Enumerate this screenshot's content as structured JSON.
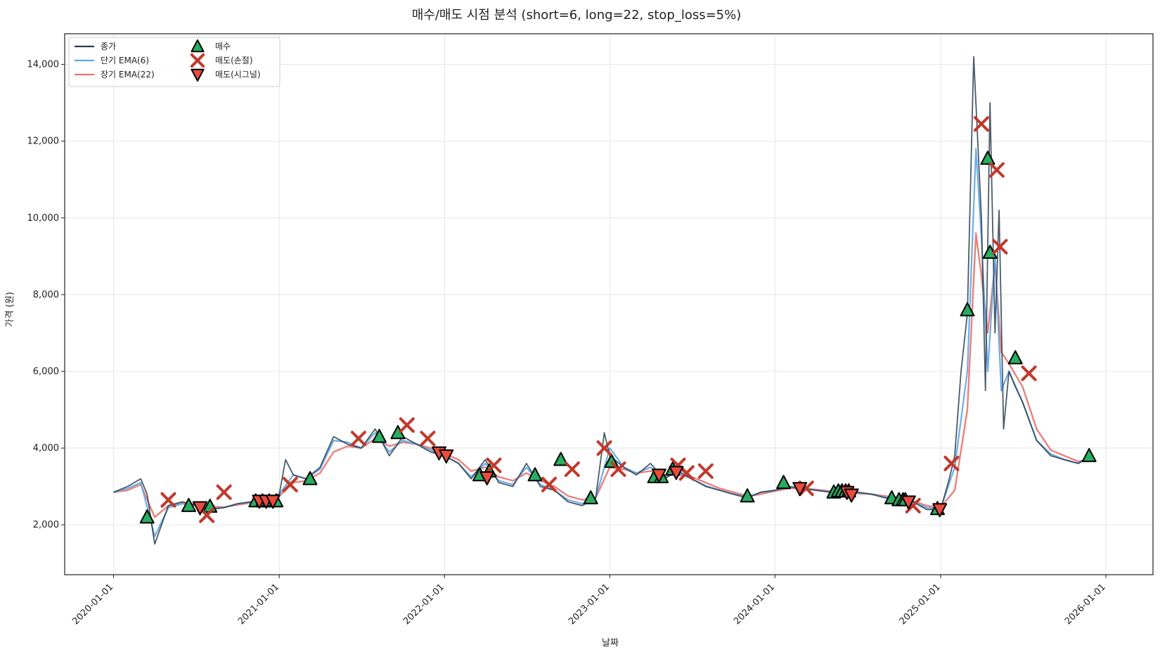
{
  "chart_data": {
    "type": "line",
    "title": "매수/매도 시점 분석 (short=6, long=22, stop_loss=5%)",
    "xlabel": "날짜",
    "ylabel": "가격 (원)",
    "xlim": [
      "2019-09-15",
      "2026-04-15"
    ],
    "ylim": [
      700,
      14800
    ],
    "grid": true,
    "legend_position": "top-left",
    "x_ticks": [
      "2020-01-01",
      "2021-01-01",
      "2022-01-01",
      "2023-01-01",
      "2024-01-01",
      "2025-01-01",
      "2026-01-01"
    ],
    "y_ticks": [
      2000,
      4000,
      6000,
      8000,
      10000,
      12000,
      14000
    ],
    "y_tick_labels": [
      "2,000",
      "4,000",
      "6,000",
      "8,000",
      "10,000",
      "12,000",
      "14,000"
    ],
    "series": [
      {
        "name": "종가",
        "color": "#2c3e50",
        "x": [
          "2020-01-01",
          "2020-02-01",
          "2020-03-01",
          "2020-03-15",
          "2020-04-01",
          "2020-05-01",
          "2020-06-01",
          "2020-07-01",
          "2020-08-01",
          "2020-09-01",
          "2020-10-01",
          "2020-11-01",
          "2020-12-01",
          "2021-01-01",
          "2021-01-15",
          "2021-02-01",
          "2021-03-01",
          "2021-04-01",
          "2021-05-01",
          "2021-06-01",
          "2021-07-01",
          "2021-08-01",
          "2021-09-01",
          "2021-10-01",
          "2021-11-01",
          "2021-12-01",
          "2022-01-01",
          "2022-02-01",
          "2022-03-01",
          "2022-04-01",
          "2022-05-01",
          "2022-06-01",
          "2022-07-01",
          "2022-08-01",
          "2022-09-01",
          "2022-10-01",
          "2022-11-01",
          "2022-12-01",
          "2022-12-20",
          "2023-01-01",
          "2023-02-01",
          "2023-03-01",
          "2023-04-01",
          "2023-05-01",
          "2023-06-01",
          "2023-07-01",
          "2023-08-01",
          "2023-09-01",
          "2023-10-01",
          "2023-11-01",
          "2023-12-01",
          "2024-01-01",
          "2024-02-01",
          "2024-03-01",
          "2024-04-01",
          "2024-05-01",
          "2024-06-01",
          "2024-07-01",
          "2024-08-01",
          "2024-09-01",
          "2024-10-01",
          "2024-11-01",
          "2024-12-01",
          "2025-01-01",
          "2025-01-20",
          "2025-02-01",
          "2025-02-15",
          "2025-03-01",
          "2025-03-15",
          "2025-04-01",
          "2025-04-10",
          "2025-04-20",
          "2025-05-01",
          "2025-05-10",
          "2025-05-20",
          "2025-06-01",
          "2025-06-15",
          "2025-07-01",
          "2025-08-01",
          "2025-09-01",
          "2025-10-01",
          "2025-11-01",
          "2025-11-25"
        ],
        "values": [
          2850,
          3000,
          3200,
          2800,
          1500,
          2500,
          2600,
          2500,
          2400,
          2450,
          2550,
          2600,
          2700,
          2800,
          3700,
          3300,
          3200,
          3500,
          4300,
          4100,
          4000,
          4500,
          3800,
          4300,
          4100,
          3900,
          3800,
          3600,
          3200,
          3700,
          3100,
          3000,
          3600,
          3000,
          2900,
          2600,
          2500,
          2700,
          4400,
          3800,
          3500,
          3300,
          3600,
          3200,
          3400,
          3200,
          3000,
          2900,
          2800,
          2700,
          2850,
          2900,
          3000,
          2950,
          2900,
          2850,
          2800,
          2850,
          2800,
          2700,
          2700,
          2600,
          2400,
          2400,
          3200,
          3800,
          6000,
          7500,
          14200,
          10000,
          5500,
          13000,
          7000,
          10200,
          4500,
          6000,
          5600,
          5200,
          4200,
          3800,
          3700,
          3600,
          3800
        ]
      },
      {
        "name": "단기 EMA(6)",
        "color": "#5da5e6",
        "x": [
          "2020-01-01",
          "2020-02-01",
          "2020-03-01",
          "2020-04-01",
          "2020-05-01",
          "2020-06-01",
          "2020-07-01",
          "2020-08-01",
          "2020-09-01",
          "2020-10-01",
          "2020-11-01",
          "2020-12-01",
          "2021-01-01",
          "2021-02-01",
          "2021-03-01",
          "2021-04-01",
          "2021-05-01",
          "2021-06-01",
          "2021-07-01",
          "2021-08-01",
          "2021-09-01",
          "2021-10-01",
          "2021-11-01",
          "2021-12-01",
          "2022-01-01",
          "2022-02-01",
          "2022-03-01",
          "2022-04-01",
          "2022-05-01",
          "2022-06-01",
          "2022-07-01",
          "2022-08-01",
          "2022-09-01",
          "2022-10-01",
          "2022-11-01",
          "2022-12-01",
          "2023-01-01",
          "2023-02-01",
          "2023-03-01",
          "2023-04-01",
          "2023-05-01",
          "2023-06-01",
          "2023-07-01",
          "2023-08-01",
          "2023-09-01",
          "2023-10-01",
          "2023-11-01",
          "2023-12-01",
          "2024-01-01",
          "2024-02-01",
          "2024-03-01",
          "2024-04-01",
          "2024-05-01",
          "2024-06-01",
          "2024-07-01",
          "2024-08-01",
          "2024-09-01",
          "2024-10-01",
          "2024-11-01",
          "2024-12-01",
          "2025-01-01",
          "2025-02-01",
          "2025-03-01",
          "2025-03-20",
          "2025-04-01",
          "2025-04-15",
          "2025-05-01",
          "2025-05-15",
          "2025-06-01",
          "2025-07-01",
          "2025-08-01",
          "2025-09-01",
          "2025-10-01",
          "2025-11-01",
          "2025-11-25"
        ],
        "values": [
          2850,
          2950,
          3100,
          1700,
          2450,
          2550,
          2500,
          2420,
          2450,
          2550,
          2600,
          2680,
          2800,
          3300,
          3200,
          3450,
          4200,
          4150,
          4000,
          4400,
          3900,
          4200,
          4100,
          3950,
          3800,
          3600,
          3250,
          3600,
          3150,
          3050,
          3500,
          3050,
          2900,
          2650,
          2550,
          2700,
          4000,
          3500,
          3350,
          3500,
          3250,
          3350,
          3200,
          3020,
          2900,
          2800,
          2720,
          2850,
          2900,
          2980,
          2950,
          2900,
          2860,
          2800,
          2840,
          2800,
          2720,
          2680,
          2600,
          2450,
          2420,
          3500,
          6000,
          11800,
          9500,
          6000,
          9000,
          5500,
          6000,
          5200,
          4200,
          3850,
          3700,
          3600,
          3750
        ]
      },
      {
        "name": "장기 EMA(22)",
        "color": "#e8736b",
        "x": [
          "2020-01-01",
          "2020-02-01",
          "2020-03-01",
          "2020-04-01",
          "2020-05-01",
          "2020-06-01",
          "2020-07-01",
          "2020-08-01",
          "2020-09-01",
          "2020-10-01",
          "2020-11-01",
          "2020-12-01",
          "2021-01-01",
          "2021-02-01",
          "2021-03-01",
          "2021-04-01",
          "2021-05-01",
          "2021-06-01",
          "2021-07-01",
          "2021-08-01",
          "2021-09-01",
          "2021-10-01",
          "2021-11-01",
          "2021-12-01",
          "2022-01-01",
          "2022-02-01",
          "2022-03-01",
          "2022-04-01",
          "2022-05-01",
          "2022-06-01",
          "2022-07-01",
          "2022-08-01",
          "2022-09-01",
          "2022-10-01",
          "2022-11-01",
          "2022-12-01",
          "2023-01-01",
          "2023-02-01",
          "2023-03-01",
          "2023-04-01",
          "2023-05-01",
          "2023-06-01",
          "2023-07-01",
          "2023-08-01",
          "2023-09-01",
          "2023-10-01",
          "2023-11-01",
          "2023-12-01",
          "2024-01-01",
          "2024-02-01",
          "2024-03-01",
          "2024-04-01",
          "2024-05-01",
          "2024-06-01",
          "2024-07-01",
          "2024-08-01",
          "2024-09-01",
          "2024-10-01",
          "2024-11-01",
          "2024-12-01",
          "2025-01-01",
          "2025-02-01",
          "2025-03-01",
          "2025-03-20",
          "2025-04-01",
          "2025-04-15",
          "2025-05-01",
          "2025-05-15",
          "2025-06-01",
          "2025-07-01",
          "2025-08-01",
          "2025-09-01",
          "2025-10-01",
          "2025-11-01",
          "2025-11-25"
        ],
        "values": [
          2850,
          2900,
          3050,
          2200,
          2500,
          2580,
          2550,
          2480,
          2460,
          2520,
          2580,
          2650,
          2750,
          3100,
          3150,
          3350,
          3900,
          4050,
          4000,
          4250,
          4050,
          4150,
          4100,
          4000,
          3850,
          3700,
          3400,
          3500,
          3250,
          3150,
          3350,
          3150,
          3000,
          2750,
          2650,
          2700,
          3500,
          3450,
          3350,
          3400,
          3300,
          3300,
          3250,
          3100,
          2950,
          2850,
          2750,
          2800,
          2880,
          2950,
          2950,
          2920,
          2880,
          2830,
          2820,
          2800,
          2750,
          2700,
          2620,
          2500,
          2450,
          2900,
          5000,
          9600,
          8500,
          7000,
          8800,
          6500,
          6200,
          5600,
          4500,
          3950,
          3800,
          3650,
          3700
        ]
      }
    ],
    "markers": [
      {
        "name": "매수",
        "symbol": "triangle-up",
        "color": "#27ae60",
        "x": [
          "2020-03-15",
          "2020-06-15",
          "2020-08-01",
          "2020-11-10",
          "2020-11-25",
          "2020-12-10",
          "2020-12-25",
          "2021-03-10",
          "2021-08-10",
          "2021-09-20",
          "2022-03-20",
          "2022-04-10",
          "2022-07-20",
          "2022-09-15",
          "2022-11-20",
          "2023-01-05",
          "2023-04-10",
          "2023-04-25",
          "2023-05-20",
          "2023-11-01",
          "2024-01-20",
          "2024-05-10",
          "2024-05-20",
          "2024-05-28",
          "2024-06-05",
          "2024-06-12",
          "2024-09-15",
          "2024-10-01",
          "2024-10-10",
          "2024-10-15",
          "2024-12-25",
          "2025-03-01",
          "2025-04-15",
          "2025-04-20",
          "2025-06-15",
          "2025-11-25"
        ],
        "values": [
          2200,
          2500,
          2480,
          2620,
          2620,
          2620,
          2620,
          3200,
          4300,
          4400,
          3300,
          3400,
          3300,
          3700,
          2700,
          3650,
          3250,
          3250,
          3450,
          2750,
          3100,
          2850,
          2880,
          2880,
          2880,
          2880,
          2700,
          2650,
          2650,
          2650,
          2420,
          7600,
          11550,
          9100,
          6350,
          3800
        ]
      },
      {
        "name": "매도(손절)",
        "symbol": "x",
        "color": "#c0392b",
        "x": [
          "2020-05-01",
          "2020-07-25",
          "2020-09-01",
          "2021-01-25",
          "2021-06-25",
          "2021-10-10",
          "2021-11-25",
          "2022-04-20",
          "2022-08-20",
          "2022-10-10",
          "2022-12-20",
          "2023-01-20",
          "2023-06-01",
          "2023-06-20",
          "2023-08-01",
          "2024-03-10",
          "2024-11-01",
          "2025-01-25",
          "2025-04-01",
          "2025-05-05",
          "2025-05-12",
          "2025-07-15"
        ],
        "values": [
          2650,
          2250,
          2850,
          3050,
          4250,
          4600,
          4250,
          3550,
          3050,
          3450,
          4000,
          3450,
          3550,
          3350,
          3400,
          2950,
          2500,
          3600,
          12450,
          11250,
          9250,
          5950
        ]
      },
      {
        "name": "매도(시그널)",
        "symbol": "triangle-down",
        "color": "#e74c3c",
        "x": [
          "2020-07-10",
          "2020-11-18",
          "2020-12-03",
          "2020-12-18",
          "2021-12-20",
          "2022-01-05",
          "2022-04-05",
          "2023-04-20",
          "2023-05-28",
          "2024-02-25",
          "2024-06-08",
          "2024-06-18",
          "2024-10-22",
          "2024-12-30"
        ],
        "values": [
          2450,
          2620,
          2620,
          2620,
          3880,
          3800,
          3230,
          3300,
          3370,
          2950,
          2850,
          2780,
          2600,
          2400
        ]
      }
    ]
  }
}
